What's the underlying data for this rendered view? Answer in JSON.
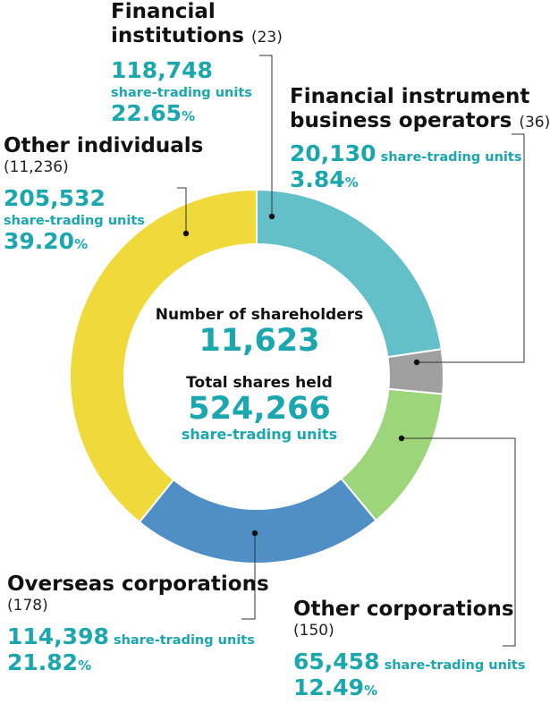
{
  "chart_data": {
    "type": "pie",
    "center": {
      "shareholders_label": "Number of shareholders",
      "shareholders_value": "11,623",
      "total_label": "Total shares held",
      "total_value": "524,266",
      "total_units": "share-trading units"
    },
    "slices": [
      {
        "name": "Financial institutions",
        "count": "(23)",
        "units": "118,748",
        "units_label": "share-trading units",
        "percent": "22.65",
        "value": 22.65,
        "color": "#63c0c8"
      },
      {
        "name": "Financial instrument business operators",
        "count": "(36)",
        "units": "20,130",
        "units_label": "share-trading units",
        "percent": "3.84",
        "value": 3.84,
        "color": "#a0a0a0"
      },
      {
        "name": "Other corporations",
        "count": "(150)",
        "units": "65,458",
        "units_label": "share-trading units",
        "percent": "12.49",
        "value": 12.49,
        "color": "#9cd57a"
      },
      {
        "name": "Overseas corporations",
        "count": "(178)",
        "units": "114,398",
        "units_label": "share-trading units",
        "percent": "21.82",
        "value": 21.82,
        "color": "#4f8fc6"
      },
      {
        "name": "Other individuals",
        "count": "(11,236)",
        "units": "205,532",
        "units_label": "share-trading units",
        "percent": "39.20",
        "value": 39.2,
        "color": "#f0d93a"
      }
    ],
    "percent_sign": "%"
  }
}
